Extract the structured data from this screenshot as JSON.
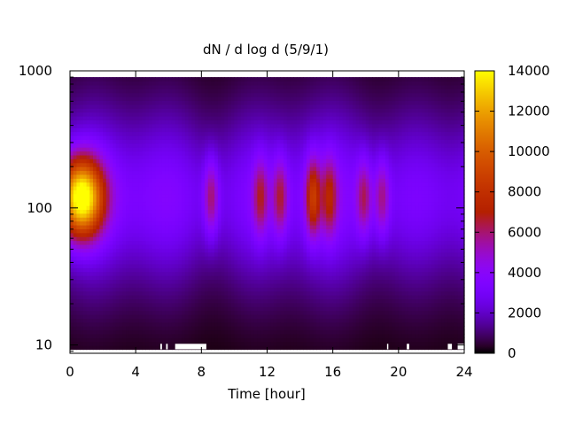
{
  "chart_data": {
    "type": "heatmap",
    "title": "dN / d log d (5/9/1)",
    "xlabel": "Time [hour]",
    "ylabel": "",
    "x_range": [
      0,
      24
    ],
    "x_ticks": [
      0,
      4,
      8,
      12,
      16,
      20,
      24
    ],
    "y_scale": "log",
    "y_range": [
      8.7,
      1000
    ],
    "y_ticks": [
      10,
      100,
      1000
    ],
    "colorbar": {
      "range": [
        0,
        14000
      ],
      "ticks": [
        0,
        2000,
        4000,
        6000,
        8000,
        10000,
        12000,
        14000
      ],
      "colormap": "gnuplot-pm3d"
    },
    "grid": false,
    "data_extent": {
      "x": [
        0,
        24
      ],
      "y": [
        9.3,
        900
      ]
    },
    "intensity_peaks": [
      {
        "time_h": 0.7,
        "diameter": 120,
        "value": 13500
      },
      {
        "time_h": 14.8,
        "diameter": 120,
        "value": 7000
      },
      {
        "time_h": 8.6,
        "diameter": 120,
        "value": 5400
      },
      {
        "time_h": 11.6,
        "diameter": 120,
        "value": 5200
      },
      {
        "time_h": 12.8,
        "diameter": 120,
        "value": 5300
      },
      {
        "time_h": 15.8,
        "diameter": 120,
        "value": 5500
      },
      {
        "time_h": 17.9,
        "diameter": 120,
        "value": 5200
      },
      {
        "time_h": 19.0,
        "diameter": 120,
        "value": 5000
      }
    ],
    "background_level": 3200,
    "low_diameter_gaps": [
      [
        5.5,
        5.6
      ],
      [
        5.85,
        5.95
      ],
      [
        6.4,
        8.3
      ],
      [
        19.3,
        19.38
      ],
      [
        20.5,
        20.65
      ],
      [
        23.0,
        23.25
      ],
      [
        23.6,
        24.0
      ]
    ]
  }
}
